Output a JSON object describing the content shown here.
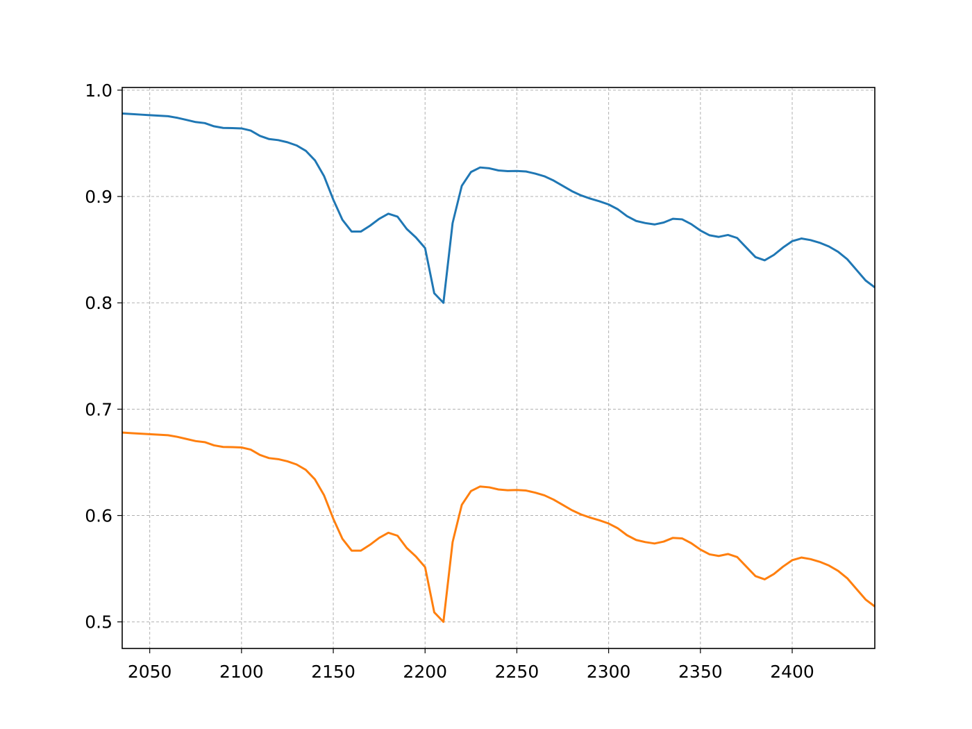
{
  "chart_data": {
    "type": "line",
    "title": "",
    "xlabel": "",
    "ylabel": "",
    "xlim": [
      2035,
      2445
    ],
    "ylim": [
      0.475,
      1.0025
    ],
    "grid": true,
    "xticks": [
      2050,
      2100,
      2150,
      2200,
      2250,
      2300,
      2350,
      2400
    ],
    "yticks": [
      0.5,
      0.6,
      0.7,
      0.8,
      0.9,
      1.0
    ],
    "xtick_labels": [
      "2050",
      "2100",
      "2150",
      "2200",
      "2250",
      "2300",
      "2350",
      "2400"
    ],
    "ytick_labels": [
      "0.5",
      "0.6",
      "0.7",
      "0.8",
      "0.9",
      "1.0"
    ],
    "x": [
      2035,
      2040,
      2045,
      2050,
      2055,
      2060,
      2065,
      2070,
      2075,
      2080,
      2085,
      2090,
      2095,
      2100,
      2105,
      2110,
      2115,
      2120,
      2125,
      2130,
      2135,
      2140,
      2145,
      2150,
      2155,
      2160,
      2165,
      2170,
      2175,
      2180,
      2185,
      2190,
      2195,
      2200,
      2205,
      2210,
      2215,
      2220,
      2225,
      2230,
      2235,
      2240,
      2245,
      2250,
      2255,
      2260,
      2265,
      2270,
      2275,
      2280,
      2285,
      2290,
      2295,
      2300,
      2305,
      2310,
      2315,
      2320,
      2325,
      2330,
      2335,
      2340,
      2345,
      2350,
      2355,
      2360,
      2365,
      2370,
      2375,
      2380,
      2385,
      2390,
      2395,
      2400,
      2405,
      2410,
      2415,
      2420,
      2425,
      2430,
      2435,
      2440,
      2445
    ],
    "series": [
      {
        "color": "#1f77b4",
        "values": [
          0.978,
          0.9775,
          0.977,
          0.9765,
          0.976,
          0.9755,
          0.974,
          0.972,
          0.97,
          0.969,
          0.966,
          0.9645,
          0.9643,
          0.964,
          0.962,
          0.957,
          0.954,
          0.953,
          0.951,
          0.948,
          0.943,
          0.934,
          0.919,
          0.897,
          0.878,
          0.867,
          0.867,
          0.8725,
          0.879,
          0.8838,
          0.881,
          0.8695,
          0.8615,
          0.8515,
          0.809,
          0.8,
          0.875,
          0.91,
          0.923,
          0.9273,
          0.9265,
          0.9245,
          0.9238,
          0.924,
          0.9235,
          0.9215,
          0.919,
          0.915,
          0.91,
          0.905,
          0.901,
          0.898,
          0.8955,
          0.8925,
          0.888,
          0.8815,
          0.877,
          0.875,
          0.8737,
          0.8755,
          0.879,
          0.8785,
          0.874,
          0.868,
          0.8635,
          0.862,
          0.8638,
          0.861,
          0.852,
          0.843,
          0.84,
          0.845,
          0.852,
          0.858,
          0.8605,
          0.859,
          0.8565,
          0.853,
          0.848,
          0.841,
          0.831,
          0.821,
          0.8145
        ]
      },
      {
        "color": "#ff7f0e",
        "values": [
          0.678,
          0.6775,
          0.677,
          0.6765,
          0.676,
          0.6755,
          0.674,
          0.672,
          0.67,
          0.669,
          0.666,
          0.6645,
          0.6643,
          0.664,
          0.662,
          0.657,
          0.654,
          0.653,
          0.651,
          0.648,
          0.643,
          0.634,
          0.619,
          0.597,
          0.578,
          0.567,
          0.567,
          0.5725,
          0.579,
          0.5838,
          0.581,
          0.5695,
          0.5615,
          0.5515,
          0.509,
          0.5,
          0.575,
          0.61,
          0.623,
          0.6273,
          0.6265,
          0.6245,
          0.6238,
          0.624,
          0.6235,
          0.6215,
          0.619,
          0.615,
          0.61,
          0.605,
          0.601,
          0.598,
          0.5955,
          0.5925,
          0.588,
          0.5815,
          0.577,
          0.575,
          0.5737,
          0.5755,
          0.579,
          0.5785,
          0.574,
          0.568,
          0.5635,
          0.562,
          0.5638,
          0.561,
          0.552,
          0.543,
          0.54,
          0.545,
          0.552,
          0.558,
          0.5605,
          0.559,
          0.5565,
          0.553,
          0.548,
          0.541,
          0.531,
          0.521,
          0.5145
        ]
      }
    ]
  }
}
